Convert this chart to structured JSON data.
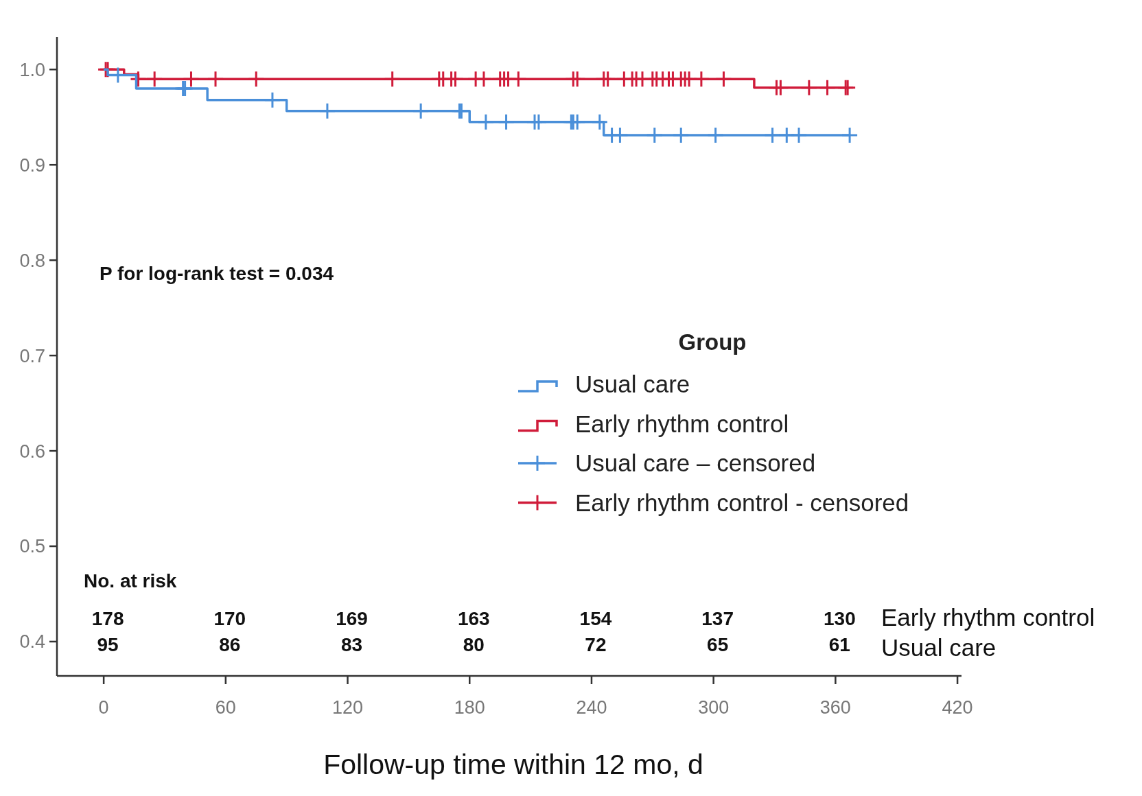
{
  "chart_data": {
    "type": "step",
    "xlabel": "Follow-up time within 12 mo, d",
    "legend_title": "Group",
    "legend": "right",
    "grid": false,
    "xlim": [
      -23,
      422
    ],
    "ylim": [
      0.364,
      1.034
    ],
    "xticks": [
      0,
      60,
      120,
      180,
      240,
      300,
      360,
      420
    ],
    "yticks": [
      0.4,
      0.5,
      0.6,
      0.7,
      0.8,
      0.9,
      {
        "value": 1.0,
        "label": "1.0"
      }
    ],
    "series": [
      {
        "name": "Usual care",
        "color": "#4a8fd9",
        "marker": "none",
        "x": [
          0,
          2,
          16,
          51,
          90,
          180,
          246,
          367
        ],
        "values": [
          1.0,
          0.994,
          0.98,
          0.968,
          0.9565,
          0.945,
          0.931,
          0.931
        ]
      },
      {
        "name": "Early rhythm control",
        "color": "#d01c3a",
        "marker": "none",
        "x": [
          0,
          10,
          17,
          320,
          367
        ],
        "values": [
          1.0,
          0.995,
          0.99,
          0.981,
          0.981
        ]
      },
      {
        "name": "Usual care – censored",
        "type": "scatter",
        "color": "#4a8fd9",
        "marker": "cross",
        "x": [
          7,
          39,
          40,
          83,
          110,
          156,
          175,
          176,
          188,
          198,
          212,
          214,
          230,
          231,
          233,
          244,
          250,
          254,
          271,
          284,
          301,
          329,
          336,
          342,
          367
        ],
        "values": [
          0.994,
          0.98,
          0.98,
          0.968,
          0.9565,
          0.9565,
          0.9565,
          0.9565,
          0.945,
          0.945,
          0.945,
          0.945,
          0.945,
          0.945,
          0.945,
          0.945,
          0.931,
          0.931,
          0.931,
          0.931,
          0.931,
          0.931,
          0.931,
          0.931,
          0.931
        ]
      },
      {
        "name": "Early rhythm control - censored",
        "type": "scatter",
        "color": "#d01c3a",
        "marker": "cross",
        "x": [
          1,
          2,
          17,
          25,
          43,
          55,
          75,
          142,
          165,
          167,
          171,
          173,
          183,
          187,
          195,
          197,
          199,
          204,
          231,
          233,
          246,
          248,
          256,
          260,
          262,
          265,
          270,
          272,
          275,
          278,
          280,
          284,
          286,
          288,
          294,
          305,
          331,
          333,
          347,
          356,
          365,
          366
        ],
        "values": [
          1.0,
          1.0,
          0.99,
          0.99,
          0.99,
          0.99,
          0.99,
          0.99,
          0.99,
          0.99,
          0.99,
          0.99,
          0.99,
          0.99,
          0.99,
          0.99,
          0.99,
          0.99,
          0.99,
          0.99,
          0.99,
          0.99,
          0.99,
          0.99,
          0.99,
          0.99,
          0.99,
          0.99,
          0.99,
          0.99,
          0.99,
          0.99,
          0.99,
          0.99,
          0.99,
          0.99,
          0.981,
          0.981,
          0.981,
          0.981,
          0.981,
          0.981
        ]
      }
    ],
    "annotations": [
      "P for log-rank test = 0.034",
      "No. at risk",
      "178",
      "170",
      "169",
      "163",
      "154",
      "137",
      "130",
      "Early rhythm control",
      "95",
      "86",
      "83",
      "80",
      "72",
      "65",
      "61",
      "Usual care"
    ]
  }
}
